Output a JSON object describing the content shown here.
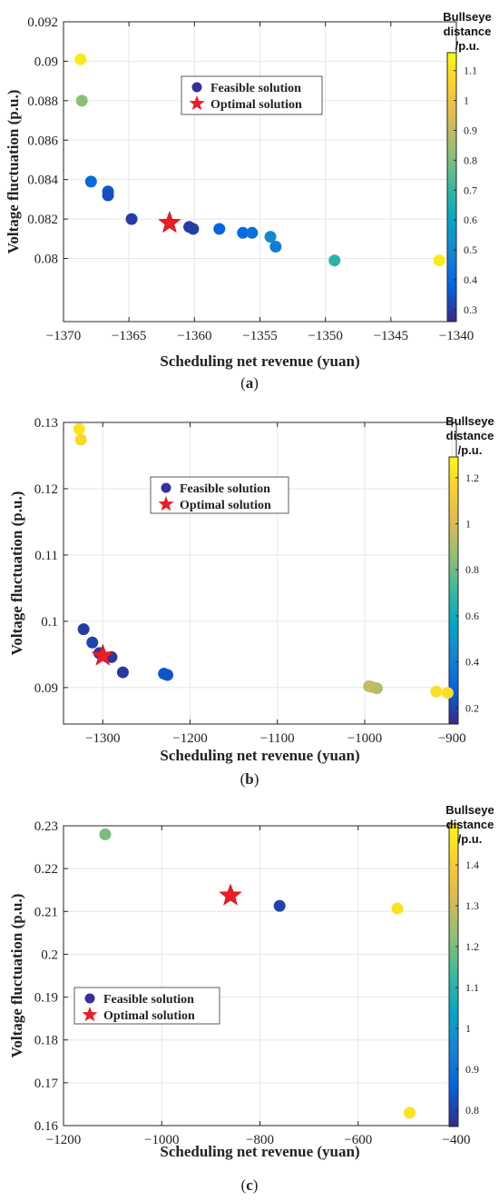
{
  "chart_data": [
    {
      "type": "scatter",
      "caption_open": "(",
      "caption_letter": "a",
      "caption_close": ")",
      "xlabel": "Scheduling net revenue (yuan)",
      "ylabel": "Voltage fluctuation (p.u.)",
      "xlim": [
        -1370,
        -1340
      ],
      "ylim": [
        0.0768,
        0.092
      ],
      "xticks": [
        -1370,
        -1365,
        -1360,
        -1355,
        -1350,
        -1345,
        -1340
      ],
      "yticks": [
        0.08,
        0.082,
        0.084,
        0.086,
        0.088,
        0.09,
        0.092
      ],
      "xtick_labels": [
        "−1370",
        "−1365",
        "−1360",
        "−1355",
        "−1350",
        "−1345",
        "−1340"
      ],
      "ytick_labels": [
        "0.08",
        "0.082",
        "0.084",
        "0.086",
        "0.088",
        "0.09",
        "0.092"
      ],
      "grid": true,
      "colorbar": {
        "title_lines": [
          "Bullseye",
          "distance",
          "/p.u."
        ],
        "range": [
          0.26,
          1.16
        ],
        "ticks": [
          0.3,
          0.4,
          0.5,
          0.6,
          0.7,
          0.8,
          0.9,
          1,
          1.1
        ],
        "tick_labels": [
          "0.3",
          "0.4",
          "0.5",
          "0.6",
          "0.7",
          "0.8",
          "0.9",
          "1",
          "1.1"
        ]
      },
      "legend": {
        "placement": "top-center",
        "entries": [
          "Feasible solution",
          "Optimal solution"
        ]
      },
      "series": [
        {
          "name": "Feasible solution",
          "marker": "circle",
          "points": [
            {
              "x": -1368.7,
              "y": 0.0901,
              "c": 1.12
            },
            {
              "x": -1368.6,
              "y": 0.088,
              "c": 0.82
            },
            {
              "x": -1367.9,
              "y": 0.0839,
              "c": 0.4
            },
            {
              "x": -1366.6,
              "y": 0.0834,
              "c": 0.36
            },
            {
              "x": -1366.6,
              "y": 0.0832,
              "c": 0.33
            },
            {
              "x": -1364.8,
              "y": 0.082,
              "c": 0.3
            },
            {
              "x": -1360.4,
              "y": 0.0816,
              "c": 0.3
            },
            {
              "x": -1360.1,
              "y": 0.0815,
              "c": 0.3
            },
            {
              "x": -1358.1,
              "y": 0.0815,
              "c": 0.38
            },
            {
              "x": -1356.3,
              "y": 0.0813,
              "c": 0.4
            },
            {
              "x": -1355.6,
              "y": 0.0813,
              "c": 0.42
            },
            {
              "x": -1354.2,
              "y": 0.0811,
              "c": 0.5
            },
            {
              "x": -1353.8,
              "y": 0.0806,
              "c": 0.46
            },
            {
              "x": -1349.3,
              "y": 0.0799,
              "c": 0.68
            },
            {
              "x": -1341.3,
              "y": 0.0799,
              "c": 1.12
            }
          ]
        },
        {
          "name": "Optimal solution",
          "marker": "star",
          "color": "#ee1c25",
          "points": [
            {
              "x": -1361.9,
              "y": 0.0818
            }
          ]
        }
      ]
    },
    {
      "type": "scatter",
      "caption_open": "(",
      "caption_letter": "b",
      "caption_close": ")",
      "xlabel": "Scheduling net revenue (yuan)",
      "ylabel": "Voltage fluctuation (p.u.)",
      "xlim": [
        -1345,
        -895
      ],
      "ylim": [
        0.0845,
        0.13
      ],
      "xticks": [
        -1300,
        -1200,
        -1100,
        -1000,
        -900
      ],
      "yticks": [
        0.09,
        0.1,
        0.11,
        0.12,
        0.13
      ],
      "xtick_labels": [
        "−1300",
        "−1200",
        "−1100",
        "−1000",
        "−900"
      ],
      "ytick_labels": [
        "0.09",
        "0.1",
        "0.11",
        "0.12",
        "0.13"
      ],
      "grid": true,
      "colorbar": {
        "title_lines": [
          "Bullseye",
          "distance",
          "/p.u."
        ],
        "range": [
          0.13,
          1.29
        ],
        "ticks": [
          0.2,
          0.4,
          0.6,
          0.8,
          1,
          1.2
        ],
        "tick_labels": [
          "0.2",
          "0.4",
          "0.6",
          "0.8",
          "1",
          "1.2"
        ]
      },
      "legend": {
        "placement": "top-center",
        "entries": [
          "Feasible solution",
          "Optimal solution"
        ]
      },
      "series": [
        {
          "name": "Feasible solution",
          "marker": "circle",
          "points": [
            {
              "x": -1327,
              "y": 0.129,
              "c": 1.22
            },
            {
              "x": -1325,
              "y": 0.1274,
              "c": 1.18
            },
            {
              "x": -1322,
              "y": 0.0988,
              "c": 0.18
            },
            {
              "x": -1312,
              "y": 0.0968,
              "c": 0.2
            },
            {
              "x": -1304,
              "y": 0.0952,
              "c": 0.18
            },
            {
              "x": -1290,
              "y": 0.0946,
              "c": 0.17
            },
            {
              "x": -1277,
              "y": 0.0923,
              "c": 0.17
            },
            {
              "x": -1230,
              "y": 0.0921,
              "c": 0.25
            },
            {
              "x": -1226,
              "y": 0.0919,
              "c": 0.24
            },
            {
              "x": -995,
              "y": 0.0902,
              "c": 0.95
            },
            {
              "x": -992,
              "y": 0.0901,
              "c": 0.97
            },
            {
              "x": -986,
              "y": 0.0899,
              "c": 0.93
            },
            {
              "x": -918,
              "y": 0.0894,
              "c": 1.2
            },
            {
              "x": -905,
              "y": 0.0892,
              "c": 1.2
            }
          ]
        },
        {
          "name": "Optimal solution",
          "marker": "star",
          "color": "#ee1c25",
          "points": [
            {
              "x": -1300,
              "y": 0.0948
            }
          ]
        }
      ]
    },
    {
      "type": "scatter",
      "caption_open": "(",
      "caption_letter": "c",
      "caption_close": ")",
      "xlabel": "Scheduling net revenue (yuan)",
      "ylabel": "Voltage fluctuation (p.u.)",
      "xlim": [
        -1200,
        -400
      ],
      "ylim": [
        0.16,
        0.23
      ],
      "xticks": [
        -1200,
        -1000,
        -800,
        -600,
        -400
      ],
      "yticks": [
        0.16,
        0.17,
        0.18,
        0.19,
        0.2,
        0.21,
        0.22,
        0.23
      ],
      "xtick_labels": [
        "−1200",
        "−1000",
        "−800",
        "−600",
        "−400"
      ],
      "ytick_labels": [
        "0.16",
        "0.17",
        "0.18",
        "0.19",
        "0.2",
        "0.21",
        "0.22",
        "0.23"
      ],
      "grid": true,
      "colorbar": {
        "title_lines": [
          "Bullseye",
          "distance",
          "/p.u."
        ],
        "range": [
          0.76,
          1.5
        ],
        "ticks": [
          0.8,
          0.9,
          1,
          1.1,
          1.2,
          1.3,
          1.4
        ],
        "tick_labels": [
          "0.8",
          "0.9",
          "1",
          "1.1",
          "1.2",
          "1.3",
          "1.4"
        ]
      },
      "legend": {
        "placement": "lower-left",
        "entries": [
          "Feasible solution",
          "Optimal solution"
        ]
      },
      "series": [
        {
          "name": "Feasible solution",
          "marker": "circle",
          "points": [
            {
              "x": -1115,
              "y": 0.228,
              "c": 1.2
            },
            {
              "x": -760,
              "y": 0.2113,
              "c": 0.8
            },
            {
              "x": -520,
              "y": 0.2107,
              "c": 1.45
            },
            {
              "x": -495,
              "y": 0.163,
              "c": 1.45
            }
          ]
        },
        {
          "name": "Optimal solution",
          "marker": "star",
          "color": "#ee1c25",
          "points": [
            {
              "x": -860,
              "y": 0.2137
            }
          ]
        }
      ]
    }
  ]
}
